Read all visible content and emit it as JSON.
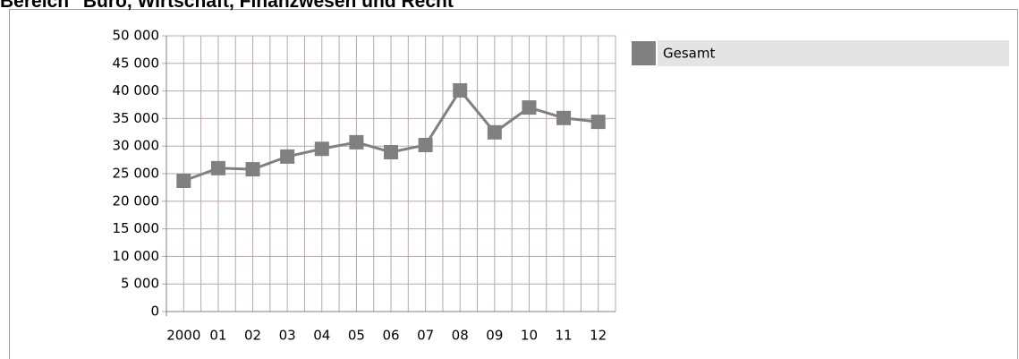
{
  "chart_data": {
    "type": "line",
    "title": "Bereich \"Büro, Wirtschaft, Finanzwesen und Recht\"",
    "categories": [
      "2000",
      "01",
      "02",
      "03",
      "04",
      "05",
      "06",
      "07",
      "08",
      "09",
      "10",
      "11",
      "12"
    ],
    "series": [
      {
        "name": "Gesamt",
        "color": "#808080",
        "values": [
          23700,
          26000,
          25800,
          28100,
          29500,
          30700,
          28900,
          30200,
          40100,
          32500,
          37000,
          35100,
          34400
        ]
      }
    ],
    "ylim": [
      0,
      50000
    ],
    "yticks": [
      0,
      {
        "value": 5000,
        "label": "5 000"
      },
      {
        "value": 10000,
        "label": "10 000"
      },
      {
        "value": 15000,
        "label": "15 000"
      },
      {
        "value": 20000,
        "label": "20 000"
      },
      {
        "value": 25000,
        "label": "25 000"
      },
      {
        "value": 30000,
        "label": "30 000"
      },
      {
        "value": 35000,
        "label": "35 000"
      },
      {
        "value": 40000,
        "label": "40 000"
      },
      {
        "value": 45000,
        "label": "45 000"
      },
      {
        "value": 50000,
        "label": "50 000"
      }
    ],
    "grid": true,
    "legend": "right"
  }
}
